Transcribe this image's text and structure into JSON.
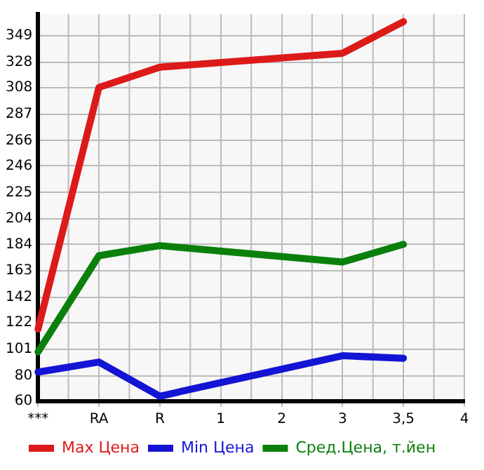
{
  "chart_data": {
    "type": "line",
    "categories": [
      "***",
      "RA",
      "R",
      "1",
      "2",
      "3",
      "3,5",
      "4"
    ],
    "series": [
      {
        "name": "Max Цена",
        "color": "#dd1a1a",
        "values": [
          117,
          308,
          324,
          null,
          null,
          335,
          360,
          null
        ]
      },
      {
        "name": "Min Цена",
        "color": "#1414d4",
        "values": [
          83,
          91,
          64,
          null,
          null,
          96,
          94,
          null
        ]
      },
      {
        "name": "Сред.Цена, т.йен",
        "color": "#0a800a",
        "values": [
          99,
          175,
          183,
          null,
          null,
          170,
          184,
          null
        ]
      }
    ],
    "ylim": [
      60,
      366
    ],
    "yticks": [
      60,
      80,
      101,
      122,
      142,
      163,
      184,
      204,
      225,
      246,
      266,
      287,
      308,
      328,
      349
    ],
    "grid": true,
    "legend": "bottom",
    "marker": "none",
    "line_style": "solid"
  }
}
